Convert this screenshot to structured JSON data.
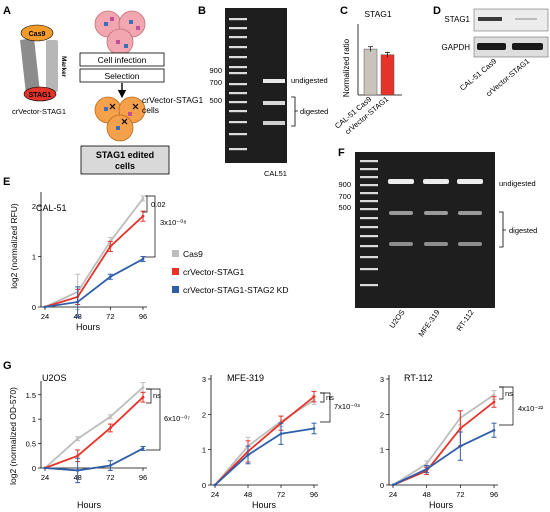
{
  "panels": {
    "A": "A",
    "B": "B",
    "C": "C",
    "D": "D",
    "E": "E",
    "F": "F",
    "G": "G"
  },
  "panelA": {
    "plasmid_cas9": "Cas9",
    "plasmid_stag1": "STAG1",
    "plasmid_marker": "Marker",
    "plasmid_caption": "crVector-STAG1",
    "step1": "Cell infection",
    "step2": "Selection",
    "cells_label_1": "crVector-STAG1",
    "cells_label_2": "cells",
    "result_1": "STAG1 edited",
    "result_2": "cells"
  },
  "panelB": {
    "ladder": [
      "900",
      "700",
      "500"
    ],
    "undigested": "undigested",
    "digested": "digested",
    "lane": "CAL51"
  },
  "panelC": {
    "chart_data": {
      "type": "bar",
      "title": "STAG1",
      "ylabel": "Normalized ratio",
      "categories": [
        "CAL-51 Cas9",
        "crVector-STAG1"
      ],
      "values": [
        0.97,
        0.85
      ],
      "errors": [
        0.05,
        0.05
      ],
      "colors": [
        "#c8c4bc",
        "#e5332a"
      ],
      "ylim": [
        0,
        1.5
      ]
    }
  },
  "panelD": {
    "row1": "STAG1",
    "row2": "GAPDH",
    "lanes": [
      "CAL-51 Cas9",
      "crVector-STAG1"
    ]
  },
  "panelE": {
    "chart_data": {
      "type": "line",
      "title": "CAL-51",
      "xlabel": "Hours",
      "ylabel": "log2 (normalized RFU)",
      "x": [
        24,
        48,
        72,
        96
      ],
      "xticks": [
        "24",
        "48",
        "72",
        "96"
      ],
      "ylim": [
        0,
        2.2
      ],
      "yticks": [
        "0",
        "1",
        "2"
      ],
      "series": [
        {
          "name": "Cas9",
          "color": "#bdbdbd",
          "values": [
            0,
            0.3,
            1.3,
            2.15
          ],
          "errors": [
            0,
            0.35,
            0.08,
            0.05
          ]
        },
        {
          "name": "crVector-STAG1",
          "color": "#e5332a",
          "values": [
            0,
            0.2,
            1.2,
            1.8
          ],
          "errors": [
            0,
            0.15,
            0.1,
            0.1
          ]
        },
        {
          "name": "crVector-STAG1-STAG2 KD",
          "color": "#2f5ea8",
          "values": [
            0,
            0.1,
            0.6,
            0.95
          ],
          "errors": [
            0,
            0.3,
            0.05,
            0.05
          ]
        }
      ],
      "annotations": [
        "0.02",
        "3x10⁻⁰⁸"
      ]
    }
  },
  "panelF": {
    "ladder": [
      "900",
      "700",
      "500"
    ],
    "undigested": "undigested",
    "digested": "digested",
    "lanes": [
      "U2OS",
      "MFE-319",
      "RT-112"
    ]
  },
  "panelG": {
    "chart_data": [
      {
        "type": "line",
        "title": "U2OS",
        "xlabel": "Hours",
        "ylabel": "log2 (normalized OD-570)",
        "x": [
          24,
          48,
          72,
          96
        ],
        "xticks": [
          "24",
          "48",
          "72",
          "96"
        ],
        "ylim": [
          0,
          1.7
        ],
        "yticks": [
          "0",
          "0.5",
          "1",
          "1.5"
        ],
        "series": [
          {
            "name": "Cas9",
            "color": "#bdbdbd",
            "values": [
              0,
              0.6,
              1.05,
              1.65
            ],
            "errors": [
              0,
              0.04,
              0.04,
              0.1
            ]
          },
          {
            "name": "crVector-STAG1",
            "color": "#e5332a",
            "values": [
              0,
              0.25,
              0.82,
              1.45
            ],
            "errors": [
              0,
              0.12,
              0.08,
              0.1
            ]
          },
          {
            "name": "crVector-STAG1-STAG2 KD",
            "color": "#2f5ea8",
            "values": [
              0,
              -0.05,
              0.05,
              0.4
            ],
            "errors": [
              0,
              0.25,
              0.1,
              0.04
            ]
          }
        ],
        "annotations": [
          "ns",
          "6x10⁻⁰⁷"
        ]
      },
      {
        "type": "line",
        "title": "MFE-319",
        "xlabel": "Hours",
        "ylabel": "",
        "x": [
          24,
          48,
          72,
          96
        ],
        "xticks": [
          "24",
          "48",
          "72",
          "96"
        ],
        "ylim": [
          0,
          3
        ],
        "yticks": [
          "0",
          "1",
          "2",
          "3"
        ],
        "series": [
          {
            "name": "Cas9",
            "color": "#bdbdbd",
            "values": [
              0,
              1.1,
              1.8,
              2.4
            ],
            "errors": [
              0,
              0.25,
              0.15,
              0.12
            ]
          },
          {
            "name": "crVector-STAG1",
            "color": "#e5332a",
            "values": [
              0,
              0.95,
              1.75,
              2.5
            ],
            "errors": [
              0,
              0.3,
              0.2,
              0.15
            ]
          },
          {
            "name": "crVector-STAG1-STAG2 KD",
            "color": "#2f5ea8",
            "values": [
              0,
              0.85,
              1.45,
              1.6
            ],
            "errors": [
              0,
              0.25,
              0.3,
              0.15
            ]
          }
        ],
        "annotations": [
          "ns",
          "7x10⁻⁰³"
        ]
      },
      {
        "type": "line",
        "title": "RT-112",
        "xlabel": "Hours",
        "ylabel": "",
        "x": [
          24,
          48,
          72,
          96
        ],
        "xticks": [
          "24",
          "48",
          "72",
          "96"
        ],
        "ylim": [
          0,
          3
        ],
        "yticks": [
          "0",
          "1",
          "2",
          "3"
        ],
        "series": [
          {
            "name": "Cas9",
            "color": "#bdbdbd",
            "values": [
              0,
              0.6,
              1.9,
              2.55
            ],
            "errors": [
              0,
              0.08,
              0.2,
              0.12
            ]
          },
          {
            "name": "crVector-STAG1",
            "color": "#e5332a",
            "values": [
              0,
              0.4,
              1.6,
              2.35
            ],
            "errors": [
              0,
              0.1,
              0.5,
              0.15
            ]
          },
          {
            "name": "crVector-STAG1-STAG2 KD",
            "color": "#2f5ea8",
            "values": [
              0,
              0.45,
              1.1,
              1.55
            ],
            "errors": [
              0,
              0.1,
              0.4,
              0.2
            ]
          }
        ],
        "annotations": [
          "ns",
          "4x10⁻²²"
        ]
      }
    ]
  }
}
